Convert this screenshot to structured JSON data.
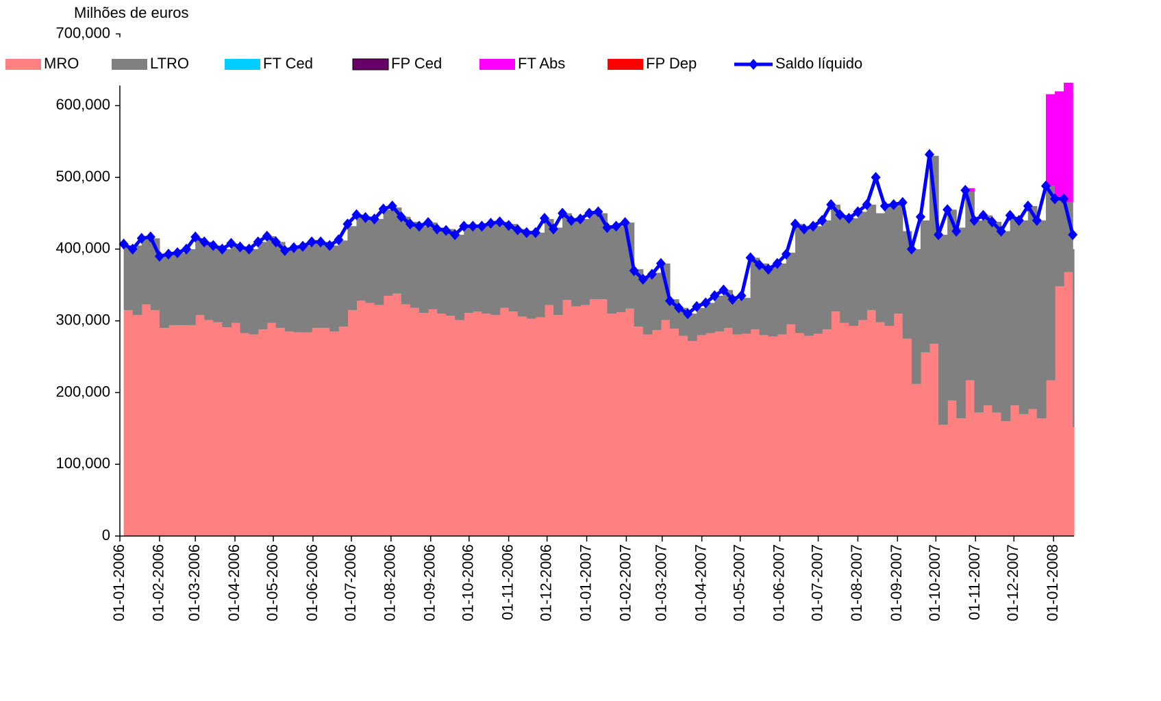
{
  "chart_data": {
    "type": "area",
    "title": "Milhões de euros",
    "x": [
      "2006-01-04",
      "2006-01-11",
      "2006-01-18",
      "2006-01-25",
      "2006-02-01",
      "2006-02-08",
      "2006-02-15",
      "2006-02-22",
      "2006-03-01",
      "2006-03-08",
      "2006-03-15",
      "2006-03-22",
      "2006-03-29",
      "2006-04-05",
      "2006-04-12",
      "2006-04-19",
      "2006-04-26",
      "2006-05-03",
      "2006-05-10",
      "2006-05-17",
      "2006-05-24",
      "2006-05-31",
      "2006-06-07",
      "2006-06-14",
      "2006-06-21",
      "2006-06-28",
      "2006-07-05",
      "2006-07-12",
      "2006-07-19",
      "2006-07-26",
      "2006-08-02",
      "2006-08-09",
      "2006-08-16",
      "2006-08-23",
      "2006-08-30",
      "2006-09-06",
      "2006-09-13",
      "2006-09-20",
      "2006-09-27",
      "2006-10-04",
      "2006-10-11",
      "2006-10-18",
      "2006-10-25",
      "2006-11-01",
      "2006-11-08",
      "2006-11-15",
      "2006-11-22",
      "2006-11-29",
      "2006-12-06",
      "2006-12-13",
      "2006-12-20",
      "2006-12-27",
      "2007-01-03",
      "2007-01-10",
      "2007-01-17",
      "2007-01-24",
      "2007-01-31",
      "2007-02-07",
      "2007-02-14",
      "2007-02-21",
      "2007-02-28",
      "2007-03-07",
      "2007-03-14",
      "2007-03-21",
      "2007-03-28",
      "2007-04-04",
      "2007-04-11",
      "2007-04-18",
      "2007-04-25",
      "2007-05-02",
      "2007-05-09",
      "2007-05-16",
      "2007-05-23",
      "2007-05-30",
      "2007-06-06",
      "2007-06-13",
      "2007-06-20",
      "2007-06-27",
      "2007-07-04",
      "2007-07-11",
      "2007-07-18",
      "2007-07-25",
      "2007-08-01",
      "2007-08-08",
      "2007-08-15",
      "2007-08-22",
      "2007-08-29",
      "2007-09-05",
      "2007-09-12",
      "2007-09-19",
      "2007-09-26",
      "2007-10-03",
      "2007-10-10",
      "2007-10-17",
      "2007-10-24",
      "2007-10-31",
      "2007-11-07",
      "2007-11-14",
      "2007-11-21",
      "2007-11-28",
      "2007-12-05",
      "2007-12-12",
      "2007-12-19",
      "2007-12-26",
      "2008-01-02",
      "2008-01-09",
      "2008-01-16"
    ],
    "series": [
      {
        "name": "MRO",
        "color": "#ff8080",
        "values": [
          315000,
          308000,
          323000,
          315000,
          290000,
          294000,
          294000,
          294000,
          308000,
          301000,
          298000,
          291000,
          297000,
          283000,
          281000,
          288000,
          297000,
          290000,
          285000,
          284000,
          284000,
          290000,
          290000,
          285000,
          292000,
          315000,
          328000,
          325000,
          322000,
          335000,
          338000,
          323000,
          318000,
          311000,
          316000,
          310000,
          307000,
          301000,
          311000,
          313000,
          310000,
          308000,
          318000,
          313000,
          306000,
          303000,
          305000,
          322000,
          308000,
          329000,
          320000,
          322000,
          330000,
          330000,
          310000,
          312000,
          317000,
          292000,
          281000,
          287000,
          301000,
          289000,
          279000,
          272000,
          280000,
          283000,
          285000,
          290000,
          281000,
          282000,
          288000,
          280000,
          278000,
          281000,
          295000,
          283000,
          279000,
          282000,
          288000,
          313000,
          297000,
          293000,
          301000,
          315000,
          298000,
          293000,
          310000,
          275000,
          212000,
          256000,
          268000,
          155000,
          189000,
          164000,
          217000,
          172000,
          182000,
          172000,
          160000,
          182000,
          170000,
          177000,
          164000,
          217000,
          348000,
          368000,
          152000
        ]
      },
      {
        "name": "LTRO",
        "color": "#808080",
        "values": [
          90000,
          97000,
          92000,
          100000,
          100000,
          101000,
          101000,
          106000,
          107000,
          109000,
          107000,
          109000,
          108000,
          119000,
          119000,
          122000,
          121000,
          120000,
          117000,
          119000,
          121000,
          120000,
          120000,
          120000,
          120000,
          117000,
          119000,
          120000,
          120000,
          120000,
          120000,
          122000,
          120000,
          121000,
          121000,
          120000,
          121000,
          119000,
          121000,
          119000,
          122000,
          127000,
          120000,
          122000,
          122000,
          119000,
          118000,
          120000,
          122000,
          121000,
          120000,
          120000,
          120000,
          120000,
          120000,
          120000,
          120000,
          80000,
          79000,
          80000,
          79000,
          41000,
          39000,
          38000,
          38000,
          42000,
          50000,
          53000,
          49000,
          50000,
          100000,
          100000,
          97000,
          99000,
          100000,
          152000,
          151000,
          150000,
          152000,
          149000,
          150000,
          150000,
          151000,
          147000,
          152000,
          167000,
          152000,
          150000,
          188000,
          184000,
          262000,
          265000,
          266000,
          266000,
          263000,
          268000,
          265000,
          266000,
          265000,
          263000,
          270000,
          283000,
          276000,
          271000,
          122000,
          97000,
          248000
        ]
      },
      {
        "name": "FT Ced",
        "color": "#00ccff",
        "values": [
          0,
          0,
          0,
          0,
          0,
          0,
          0,
          0,
          0,
          0,
          0,
          0,
          0,
          0,
          0,
          0,
          0,
          0,
          0,
          0,
          0,
          0,
          0,
          0,
          0,
          0,
          0,
          0,
          0,
          0,
          0,
          0,
          0,
          0,
          0,
          0,
          0,
          0,
          0,
          0,
          0,
          0,
          0,
          0,
          0,
          0,
          0,
          0,
          0,
          0,
          0,
          0,
          0,
          0,
          0,
          0,
          0,
          0,
          0,
          0,
          0,
          0,
          0,
          0,
          0,
          0,
          0,
          0,
          0,
          0,
          0,
          0,
          0,
          0,
          0,
          0,
          0,
          0,
          0,
          0,
          0,
          0,
          0,
          0,
          0,
          0,
          0,
          0,
          0,
          0,
          0,
          0,
          0,
          0,
          0,
          0,
          0,
          0,
          0,
          0,
          0,
          0,
          0,
          0,
          0,
          0,
          0
        ]
      },
      {
        "name": "FP Ced",
        "color": "#660066",
        "values": [
          0,
          0,
          0,
          0,
          0,
          0,
          0,
          0,
          0,
          0,
          0,
          0,
          0,
          0,
          0,
          0,
          0,
          0,
          0,
          0,
          0,
          0,
          0,
          0,
          0,
          0,
          0,
          0,
          0,
          0,
          0,
          0,
          0,
          0,
          0,
          0,
          0,
          0,
          0,
          0,
          0,
          0,
          0,
          0,
          0,
          0,
          0,
          0,
          0,
          0,
          0,
          0,
          0,
          0,
          0,
          0,
          0,
          0,
          0,
          0,
          0,
          0,
          0,
          0,
          0,
          0,
          0,
          0,
          0,
          0,
          0,
          0,
          0,
          0,
          0,
          0,
          0,
          0,
          0,
          0,
          0,
          0,
          0,
          0,
          0,
          0,
          0,
          0,
          0,
          0,
          0,
          0,
          0,
          0,
          0,
          0,
          0,
          0,
          0,
          0,
          0,
          0,
          0,
          0,
          0,
          0,
          0
        ]
      },
      {
        "name": "FT Abs",
        "color": "#ff00ff",
        "values": [
          0,
          0,
          0,
          0,
          0,
          0,
          0,
          0,
          0,
          0,
          0,
          0,
          0,
          0,
          0,
          0,
          0,
          0,
          0,
          0,
          0,
          0,
          0,
          0,
          0,
          0,
          0,
          0,
          0,
          0,
          0,
          0,
          0,
          0,
          0,
          0,
          0,
          0,
          0,
          0,
          0,
          0,
          0,
          0,
          0,
          0,
          0,
          0,
          0,
          0,
          0,
          0,
          0,
          0,
          0,
          0,
          0,
          0,
          0,
          0,
          0,
          0,
          0,
          0,
          0,
          0,
          0,
          0,
          0,
          0,
          0,
          0,
          0,
          0,
          0,
          0,
          0,
          0,
          0,
          0,
          0,
          0,
          0,
          0,
          0,
          0,
          0,
          0,
          0,
          0,
          0,
          0,
          0,
          0,
          5000,
          0,
          0,
          0,
          0,
          0,
          0,
          0,
          0,
          128000,
          150000,
          167000,
          0
        ]
      },
      {
        "name": "FP Dep",
        "color": "#ff0000",
        "values": [
          0,
          0,
          0,
          0,
          0,
          0,
          0,
          0,
          0,
          0,
          0,
          0,
          0,
          0,
          0,
          0,
          0,
          0,
          0,
          0,
          0,
          0,
          0,
          0,
          0,
          0,
          0,
          0,
          0,
          0,
          0,
          0,
          0,
          0,
          0,
          0,
          0,
          0,
          0,
          0,
          0,
          0,
          0,
          0,
          0,
          0,
          0,
          0,
          0,
          0,
          0,
          0,
          0,
          0,
          0,
          0,
          0,
          0,
          0,
          0,
          0,
          0,
          0,
          0,
          0,
          0,
          0,
          0,
          0,
          0,
          0,
          0,
          0,
          0,
          0,
          0,
          0,
          0,
          0,
          0,
          0,
          0,
          0,
          0,
          0,
          0,
          0,
          0,
          0,
          0,
          0,
          0,
          0,
          0,
          0,
          0,
          0,
          0,
          0,
          0,
          0,
          0,
          0,
          0,
          0,
          0,
          0
        ]
      },
      {
        "name": "Saldo líquido",
        "type": "line",
        "color": "#0000ff",
        "values": [
          407000,
          400000,
          415000,
          417000,
          390000,
          393000,
          395000,
          400000,
          417000,
          410000,
          405000,
          400000,
          408000,
          403000,
          400000,
          410000,
          418000,
          410000,
          398000,
          402000,
          404000,
          410000,
          410000,
          405000,
          413000,
          435000,
          448000,
          444000,
          442000,
          456000,
          460000,
          445000,
          435000,
          432000,
          437000,
          428000,
          426000,
          420000,
          432000,
          432000,
          432000,
          436000,
          438000,
          433000,
          427000,
          423000,
          423000,
          443000,
          428000,
          450000,
          440000,
          442000,
          450000,
          452000,
          430000,
          432000,
          437000,
          370000,
          358000,
          365000,
          380000,
          328000,
          318000,
          310000,
          320000,
          325000,
          335000,
          343000,
          330000,
          335000,
          388000,
          378000,
          372000,
          380000,
          393000,
          435000,
          428000,
          432000,
          440000,
          462000,
          448000,
          443000,
          452000,
          462000,
          500000,
          460000,
          462000,
          465000,
          400000,
          445000,
          532000,
          420000,
          455000,
          425000,
          482000,
          440000,
          447000,
          438000,
          425000,
          447000,
          440000,
          460000,
          440000,
          488000,
          470000,
          470000,
          420000
        ]
      }
    ],
    "xlim": [
      "2006-01-01",
      "2008-01-17"
    ],
    "xticks": [
      {
        "value": "2006-01-01",
        "label": "01-01-2006"
      },
      {
        "value": "2006-02-01",
        "label": "01-02-2006"
      },
      {
        "value": "2006-03-01",
        "label": "01-03-2006"
      },
      {
        "value": "2006-04-01",
        "label": "01-04-2006"
      },
      {
        "value": "2006-05-01",
        "label": "01-05-2006"
      },
      {
        "value": "2006-06-01",
        "label": "01-06-2006"
      },
      {
        "value": "2006-07-01",
        "label": "01-07-2006"
      },
      {
        "value": "2006-08-01",
        "label": "01-08-2006"
      },
      {
        "value": "2006-09-01",
        "label": "01-09-2006"
      },
      {
        "value": "2006-10-01",
        "label": "01-10-2006"
      },
      {
        "value": "2006-11-01",
        "label": "01-11-2006"
      },
      {
        "value": "2006-12-01",
        "label": "01-12-2006"
      },
      {
        "value": "2007-01-01",
        "label": "01-01-2007"
      },
      {
        "value": "2007-02-01",
        "label": "01-02-2007"
      },
      {
        "value": "2007-03-01",
        "label": "01-03-2007"
      },
      {
        "value": "2007-04-01",
        "label": "01-04-2007"
      },
      {
        "value": "2007-05-01",
        "label": "01-05-2007"
      },
      {
        "value": "2007-06-01",
        "label": "01-06-2007"
      },
      {
        "value": "2007-07-01",
        "label": "01-07-2007"
      },
      {
        "value": "2007-08-01",
        "label": "01-08-2007"
      },
      {
        "value": "2007-09-01",
        "label": "01-09-2007"
      },
      {
        "value": "2007-10-01",
        "label": "01-10-2007"
      },
      {
        "value": "2007-11-01",
        "label": "01-11-2007"
      },
      {
        "value": "2007-12-01",
        "label": "01-12-2007"
      },
      {
        "value": "2008-01-01",
        "label": "01-01-2008"
      }
    ],
    "ylim": [
      0,
      628000
    ],
    "yticks": [
      0,
      {
        "value": 100000,
        "label": "100,000"
      },
      {
        "value": 200000,
        "label": "200,000"
      },
      {
        "value": 300000,
        "label": "300,000"
      },
      {
        "value": 400000,
        "label": "400,000"
      },
      {
        "value": 500000,
        "label": "500,000"
      },
      {
        "value": 600000,
        "label": "600,000"
      },
      {
        "value": 700000,
        "label": "700,000"
      }
    ],
    "legend": "top"
  }
}
